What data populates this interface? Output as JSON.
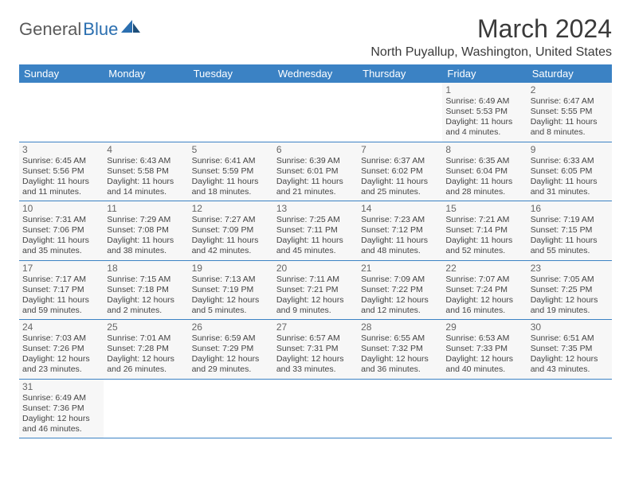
{
  "logo": {
    "part1": "General",
    "part2": "Blue"
  },
  "title": "March 2024",
  "location": "North Puyallup, Washington, United States",
  "colors": {
    "header_bg": "#3b82c4",
    "header_text": "#ffffff",
    "cell_bg": "#f7f7f7",
    "border": "#3b82c4",
    "title_color": "#3a3a3a",
    "logo_gray": "#5a5a5a",
    "logo_blue": "#2b6fb0"
  },
  "weekdays": [
    "Sunday",
    "Monday",
    "Tuesday",
    "Wednesday",
    "Thursday",
    "Friday",
    "Saturday"
  ],
  "weeks": [
    [
      null,
      null,
      null,
      null,
      null,
      {
        "d": "1",
        "sr": "6:49 AM",
        "ss": "5:53 PM",
        "dl": "11 hours and 4 minutes."
      },
      {
        "d": "2",
        "sr": "6:47 AM",
        "ss": "5:55 PM",
        "dl": "11 hours and 8 minutes."
      }
    ],
    [
      {
        "d": "3",
        "sr": "6:45 AM",
        "ss": "5:56 PM",
        "dl": "11 hours and 11 minutes."
      },
      {
        "d": "4",
        "sr": "6:43 AM",
        "ss": "5:58 PM",
        "dl": "11 hours and 14 minutes."
      },
      {
        "d": "5",
        "sr": "6:41 AM",
        "ss": "5:59 PM",
        "dl": "11 hours and 18 minutes."
      },
      {
        "d": "6",
        "sr": "6:39 AM",
        "ss": "6:01 PM",
        "dl": "11 hours and 21 minutes."
      },
      {
        "d": "7",
        "sr": "6:37 AM",
        "ss": "6:02 PM",
        "dl": "11 hours and 25 minutes."
      },
      {
        "d": "8",
        "sr": "6:35 AM",
        "ss": "6:04 PM",
        "dl": "11 hours and 28 minutes."
      },
      {
        "d": "9",
        "sr": "6:33 AM",
        "ss": "6:05 PM",
        "dl": "11 hours and 31 minutes."
      }
    ],
    [
      {
        "d": "10",
        "sr": "7:31 AM",
        "ss": "7:06 PM",
        "dl": "11 hours and 35 minutes."
      },
      {
        "d": "11",
        "sr": "7:29 AM",
        "ss": "7:08 PM",
        "dl": "11 hours and 38 minutes."
      },
      {
        "d": "12",
        "sr": "7:27 AM",
        "ss": "7:09 PM",
        "dl": "11 hours and 42 minutes."
      },
      {
        "d": "13",
        "sr": "7:25 AM",
        "ss": "7:11 PM",
        "dl": "11 hours and 45 minutes."
      },
      {
        "d": "14",
        "sr": "7:23 AM",
        "ss": "7:12 PM",
        "dl": "11 hours and 48 minutes."
      },
      {
        "d": "15",
        "sr": "7:21 AM",
        "ss": "7:14 PM",
        "dl": "11 hours and 52 minutes."
      },
      {
        "d": "16",
        "sr": "7:19 AM",
        "ss": "7:15 PM",
        "dl": "11 hours and 55 minutes."
      }
    ],
    [
      {
        "d": "17",
        "sr": "7:17 AM",
        "ss": "7:17 PM",
        "dl": "11 hours and 59 minutes."
      },
      {
        "d": "18",
        "sr": "7:15 AM",
        "ss": "7:18 PM",
        "dl": "12 hours and 2 minutes."
      },
      {
        "d": "19",
        "sr": "7:13 AM",
        "ss": "7:19 PM",
        "dl": "12 hours and 5 minutes."
      },
      {
        "d": "20",
        "sr": "7:11 AM",
        "ss": "7:21 PM",
        "dl": "12 hours and 9 minutes."
      },
      {
        "d": "21",
        "sr": "7:09 AM",
        "ss": "7:22 PM",
        "dl": "12 hours and 12 minutes."
      },
      {
        "d": "22",
        "sr": "7:07 AM",
        "ss": "7:24 PM",
        "dl": "12 hours and 16 minutes."
      },
      {
        "d": "23",
        "sr": "7:05 AM",
        "ss": "7:25 PM",
        "dl": "12 hours and 19 minutes."
      }
    ],
    [
      {
        "d": "24",
        "sr": "7:03 AM",
        "ss": "7:26 PM",
        "dl": "12 hours and 23 minutes."
      },
      {
        "d": "25",
        "sr": "7:01 AM",
        "ss": "7:28 PM",
        "dl": "12 hours and 26 minutes."
      },
      {
        "d": "26",
        "sr": "6:59 AM",
        "ss": "7:29 PM",
        "dl": "12 hours and 29 minutes."
      },
      {
        "d": "27",
        "sr": "6:57 AM",
        "ss": "7:31 PM",
        "dl": "12 hours and 33 minutes."
      },
      {
        "d": "28",
        "sr": "6:55 AM",
        "ss": "7:32 PM",
        "dl": "12 hours and 36 minutes."
      },
      {
        "d": "29",
        "sr": "6:53 AM",
        "ss": "7:33 PM",
        "dl": "12 hours and 40 minutes."
      },
      {
        "d": "30",
        "sr": "6:51 AM",
        "ss": "7:35 PM",
        "dl": "12 hours and 43 minutes."
      }
    ],
    [
      {
        "d": "31",
        "sr": "6:49 AM",
        "ss": "7:36 PM",
        "dl": "12 hours and 46 minutes."
      },
      null,
      null,
      null,
      null,
      null,
      null
    ]
  ],
  "labels": {
    "sunrise": "Sunrise: ",
    "sunset": "Sunset: ",
    "daylight": "Daylight: "
  }
}
